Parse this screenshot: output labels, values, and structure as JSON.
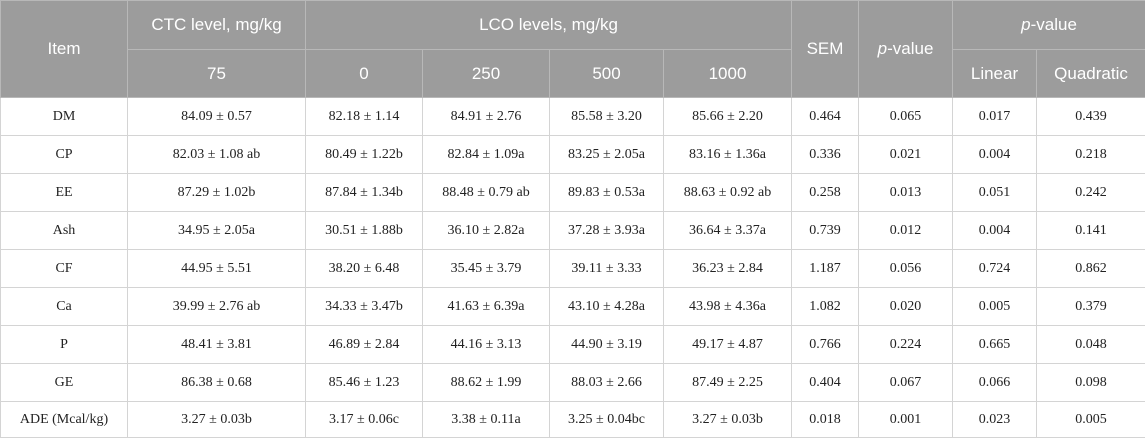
{
  "header": {
    "item": "Item",
    "ctc_group": "CTC level, mg/kg",
    "lco_group": "LCO levels, mg/kg",
    "sem": "SEM",
    "pvalue_italic": "p",
    "pvalue_rest": "-value",
    "pvalue2_italic": "p",
    "pvalue2_rest": "-value",
    "ctc_levels": [
      "75"
    ],
    "lco_levels": [
      "0",
      "250",
      "500",
      "1000"
    ],
    "contrasts": [
      "Linear",
      "Quadratic"
    ]
  },
  "rows": [
    {
      "item": "DM",
      "ctc75": "84.09 ± 0.57",
      "lco0": "82.18 ± 1.14",
      "lco250": "84.91 ± 2.76",
      "lco500": "85.58 ± 3.20",
      "lco1000": "85.66 ± 2.20",
      "sem": "0.464",
      "p": "0.065",
      "linear": "0.017",
      "quadratic": "0.439"
    },
    {
      "item": "CP",
      "ctc75": "82.03 ± 1.08 ab",
      "lco0": "80.49 ± 1.22b",
      "lco250": "82.84 ± 1.09a",
      "lco500": "83.25 ± 2.05a",
      "lco1000": "83.16 ± 1.36a",
      "sem": "0.336",
      "p": "0.021",
      "linear": "0.004",
      "quadratic": "0.218"
    },
    {
      "item": "EE",
      "ctc75": "87.29 ± 1.02b",
      "lco0": "87.84 ± 1.34b",
      "lco250": "88.48 ± 0.79 ab",
      "lco500": "89.83 ± 0.53a",
      "lco1000": "88.63 ± 0.92 ab",
      "sem": "0.258",
      "p": "0.013",
      "linear": "0.051",
      "quadratic": "0.242"
    },
    {
      "item": "Ash",
      "ctc75": "34.95 ± 2.05a",
      "lco0": "30.51 ± 1.88b",
      "lco250": "36.10 ± 2.82a",
      "lco500": "37.28 ± 3.93a",
      "lco1000": "36.64 ± 3.37a",
      "sem": "0.739",
      "p": "0.012",
      "linear": "0.004",
      "quadratic": "0.141"
    },
    {
      "item": "CF",
      "ctc75": "44.95 ± 5.51",
      "lco0": "38.20 ± 6.48",
      "lco250": "35.45 ± 3.79",
      "lco500": "39.11 ± 3.33",
      "lco1000": "36.23 ± 2.84",
      "sem": "1.187",
      "p": "0.056",
      "linear": "0.724",
      "quadratic": "0.862"
    },
    {
      "item": "Ca",
      "ctc75": "39.99 ± 2.76 ab",
      "lco0": "34.33 ± 3.47b",
      "lco250": "41.63 ± 6.39a",
      "lco500": "43.10 ± 4.28a",
      "lco1000": "43.98 ± 4.36a",
      "sem": "1.082",
      "p": "0.020",
      "linear": "0.005",
      "quadratic": "0.379"
    },
    {
      "item": "P",
      "ctc75": "48.41 ± 3.81",
      "lco0": "46.89 ± 2.84",
      "lco250": "44.16 ± 3.13",
      "lco500": "44.90 ± 3.19",
      "lco1000": "49.17 ± 4.87",
      "sem": "0.766",
      "p": "0.224",
      "linear": "0.665",
      "quadratic": "0.048"
    },
    {
      "item": "GE",
      "ctc75": "86.38 ± 0.68",
      "lco0": "85.46 ± 1.23",
      "lco250": "88.62 ± 1.99",
      "lco500": "88.03 ± 2.66",
      "lco1000": "87.49 ± 2.25",
      "sem": "0.404",
      "p": "0.067",
      "linear": "0.066",
      "quadratic": "0.098"
    },
    {
      "item": "ADE (Mcal/kg)",
      "ctc75": "3.27 ± 0.03b",
      "lco0": "3.17 ± 0.06c",
      "lco250": "3.38 ± 0.11a",
      "lco500": "3.25 ± 0.04bc",
      "lco1000": "3.27 ± 0.03b",
      "sem": "0.018",
      "p": "0.001",
      "linear": "0.023",
      "quadratic": "0.005"
    }
  ]
}
